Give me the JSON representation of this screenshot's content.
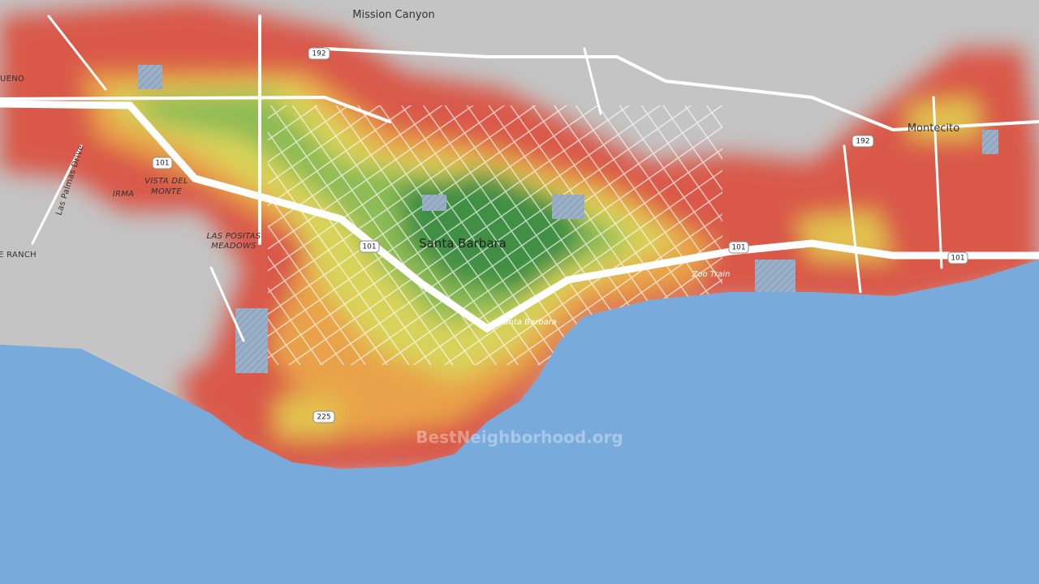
{
  "labels": {
    "mission_canyon": "Mission Canyon",
    "montecito": "Montecito",
    "santa_barbara": "Santa Barbara",
    "santa_barbara_station": "Santa Barbara",
    "zoo_train": "Zoo Train",
    "vista_del": "VISTA DEL",
    "monte": "MONTE",
    "irma": "IRMA",
    "las_positas": "LAS POSITAS",
    "meadows": "MEADOWS",
    "las_palmas_drive": "Las Palmas Drive",
    "bueno": "UENO",
    "ranch": "E RANCH"
  },
  "shields": {
    "hwy192_a": "192",
    "hwy192_b": "192",
    "us101_a": "101",
    "us101_b": "101",
    "us101_c": "101",
    "us101_d": "101",
    "hwy225": "225"
  },
  "watermark": "BestNeighborhood.org"
}
